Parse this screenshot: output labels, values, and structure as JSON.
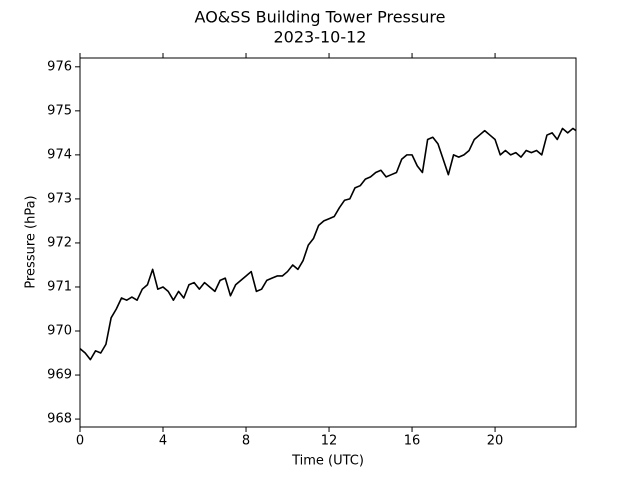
{
  "chart_data": {
    "type": "line",
    "title": "AO&SS Building Tower Pressure",
    "subtitle": "2023-10-12",
    "x_label": "Time (UTC)",
    "y_label": "Pressure (hPa)",
    "color": "#000000",
    "xlim": [
      0,
      23.9
    ],
    "ylim": [
      967.82,
      976.2
    ],
    "xticks": [
      0,
      4,
      8,
      12,
      16,
      20
    ],
    "yticks": [
      968,
      969,
      970,
      971,
      972,
      973,
      974,
      975,
      976
    ],
    "x": [
      0,
      0.25,
      0.5,
      0.75,
      1,
      1.25,
      1.5,
      1.75,
      2,
      2.25,
      2.5,
      2.75,
      3,
      3.25,
      3.5,
      3.75,
      4,
      4.25,
      4.5,
      4.75,
      5,
      5.25,
      5.5,
      5.75,
      6,
      6.25,
      6.5,
      6.75,
      7,
      7.25,
      7.5,
      7.75,
      8,
      8.25,
      8.5,
      8.75,
      9,
      9.25,
      9.5,
      9.75,
      10,
      10.25,
      10.5,
      10.75,
      11,
      11.25,
      11.5,
      11.75,
      12,
      12.25,
      12.5,
      12.75,
      13,
      13.25,
      13.5,
      13.75,
      14,
      14.25,
      14.5,
      14.75,
      15,
      15.25,
      15.5,
      15.75,
      16,
      16.25,
      16.5,
      16.75,
      17,
      17.25,
      17.5,
      17.75,
      18,
      18.25,
      18.5,
      18.75,
      19,
      19.25,
      19.5,
      19.75,
      20,
      20.25,
      20.5,
      20.75,
      21,
      21.25,
      21.5,
      21.75,
      22,
      22.25,
      22.5,
      22.75,
      23,
      23.25,
      23.5,
      23.75,
      23.9
    ],
    "values": [
      969.6,
      969.5,
      969.35,
      969.55,
      969.5,
      969.7,
      970.3,
      970.5,
      970.75,
      970.7,
      970.77,
      970.7,
      970.95,
      971.05,
      971.4,
      970.95,
      971.0,
      970.9,
      970.7,
      970.9,
      970.75,
      971.05,
      971.1,
      970.95,
      971.1,
      971.0,
      970.9,
      971.15,
      971.2,
      970.8,
      971.05,
      971.15,
      971.25,
      971.35,
      970.9,
      970.95,
      971.15,
      971.2,
      971.25,
      971.25,
      971.35,
      971.5,
      971.4,
      971.6,
      971.95,
      972.1,
      972.4,
      972.5,
      972.55,
      972.6,
      972.8,
      972.97,
      973.0,
      973.25,
      973.3,
      973.45,
      973.5,
      973.6,
      973.65,
      973.5,
      973.55,
      973.6,
      973.9,
      974.0,
      974.0,
      973.75,
      973.6,
      974.35,
      974.4,
      974.25,
      973.9,
      973.55,
      974.0,
      973.95,
      974.0,
      974.1,
      974.35,
      974.45,
      974.55,
      974.45,
      974.35,
      974.0,
      974.1,
      974.0,
      974.05,
      973.95,
      974.1,
      974.05,
      974.1,
      974.0,
      974.45,
      974.5,
      974.35,
      974.6,
      974.5,
      974.6,
      974.55
    ]
  }
}
